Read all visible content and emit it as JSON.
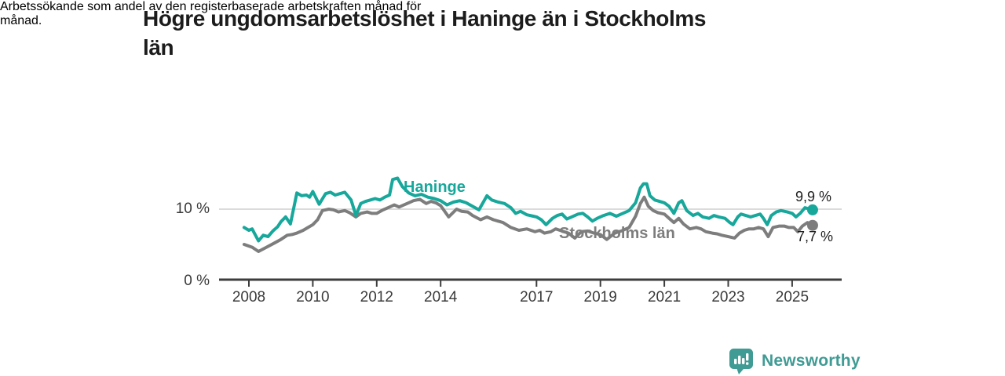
{
  "header": {
    "title_lines": [
      "Högre ungdomsarbetslöshet i Haninge än i Stockholms",
      "län"
    ],
    "subtitle_lines": [
      "Arbetssökande som andel av den registerbaserade arbetskraften månad för",
      "månad."
    ]
  },
  "chart_data": {
    "type": "line",
    "title": "Högre ungdomsarbetslöshet i Haninge än i Stockholms län",
    "subtitle": "Arbetssökande som andel av den registerbaserade arbetskraften månad för månad.",
    "grid": "horizontal line at 10 % only",
    "legend_position": "inline labels on lines",
    "ylim": [
      0,
      15.6
    ],
    "xlim_years": [
      2007.1,
      2026.5
    ],
    "y_axis": {
      "tick_labels": [
        "10 %",
        "0 %"
      ],
      "tick_values": [
        10,
        0
      ],
      "unit": "%"
    },
    "x_axis": {
      "tick_labels": [
        "2008",
        "2010",
        "2012",
        "2014",
        "2017",
        "2019",
        "2021",
        "2023",
        "2025"
      ],
      "tick_years": [
        2008,
        2010,
        2012,
        2014,
        2017,
        2019,
        2021,
        2023,
        2025
      ]
    },
    "gridlines": [
      10
    ],
    "series": [
      {
        "name": "Haninge",
        "color": "#17a79b",
        "end_label": "9,9 %",
        "end_value": 9.9,
        "points": [
          [
            2007.85,
            7.4
          ],
          [
            2008.0,
            7.0
          ],
          [
            2008.1,
            7.2
          ],
          [
            2008.3,
            5.5
          ],
          [
            2008.45,
            6.3
          ],
          [
            2008.6,
            6.1
          ],
          [
            2008.75,
            6.9
          ],
          [
            2008.9,
            7.5
          ],
          [
            2009.0,
            8.2
          ],
          [
            2009.15,
            8.9
          ],
          [
            2009.3,
            7.9
          ],
          [
            2009.5,
            12.3
          ],
          [
            2009.65,
            11.9
          ],
          [
            2009.8,
            12.0
          ],
          [
            2009.9,
            11.7
          ],
          [
            2010.0,
            12.5
          ],
          [
            2010.2,
            10.7
          ],
          [
            2010.4,
            12.2
          ],
          [
            2010.55,
            12.4
          ],
          [
            2010.7,
            12.0
          ],
          [
            2010.85,
            12.2
          ],
          [
            2011.0,
            12.4
          ],
          [
            2011.2,
            11.3
          ],
          [
            2011.35,
            9.1
          ],
          [
            2011.5,
            10.8
          ],
          [
            2011.65,
            11.1
          ],
          [
            2011.8,
            11.3
          ],
          [
            2011.95,
            11.5
          ],
          [
            2012.1,
            11.3
          ],
          [
            2012.25,
            11.7
          ],
          [
            2012.4,
            12.0
          ],
          [
            2012.5,
            14.2
          ],
          [
            2012.65,
            14.4
          ],
          [
            2012.8,
            13.2
          ],
          [
            2013.0,
            12.3
          ],
          [
            2013.2,
            11.9
          ],
          [
            2013.4,
            12.1
          ],
          [
            2013.6,
            11.7
          ],
          [
            2013.8,
            11.5
          ],
          [
            2014.0,
            11.2
          ],
          [
            2014.2,
            10.6
          ],
          [
            2014.4,
            11.0
          ],
          [
            2014.6,
            11.2
          ],
          [
            2014.8,
            10.9
          ],
          [
            2015.0,
            10.4
          ],
          [
            2015.2,
            9.9
          ],
          [
            2015.45,
            11.9
          ],
          [
            2015.6,
            11.3
          ],
          [
            2015.8,
            11.0
          ],
          [
            2016.0,
            10.8
          ],
          [
            2016.2,
            10.2
          ],
          [
            2016.35,
            9.4
          ],
          [
            2016.5,
            9.7
          ],
          [
            2016.7,
            9.2
          ],
          [
            2016.9,
            9.0
          ],
          [
            2017.0,
            8.9
          ],
          [
            2017.15,
            8.5
          ],
          [
            2017.3,
            7.8
          ],
          [
            2017.5,
            8.7
          ],
          [
            2017.65,
            9.1
          ],
          [
            2017.8,
            9.3
          ],
          [
            2017.95,
            8.6
          ],
          [
            2018.1,
            8.9
          ],
          [
            2018.3,
            9.3
          ],
          [
            2018.45,
            9.4
          ],
          [
            2018.6,
            8.9
          ],
          [
            2018.75,
            8.3
          ],
          [
            2018.9,
            8.7
          ],
          [
            2019.1,
            9.1
          ],
          [
            2019.3,
            9.4
          ],
          [
            2019.5,
            9.0
          ],
          [
            2019.7,
            9.4
          ],
          [
            2019.9,
            9.8
          ],
          [
            2020.1,
            10.9
          ],
          [
            2020.25,
            13.0
          ],
          [
            2020.35,
            13.6
          ],
          [
            2020.45,
            13.6
          ],
          [
            2020.55,
            11.9
          ],
          [
            2020.7,
            11.3
          ],
          [
            2020.85,
            11.1
          ],
          [
            2021.0,
            10.9
          ],
          [
            2021.15,
            10.4
          ],
          [
            2021.3,
            9.4
          ],
          [
            2021.45,
            10.9
          ],
          [
            2021.55,
            11.2
          ],
          [
            2021.7,
            9.8
          ],
          [
            2021.9,
            9.1
          ],
          [
            2022.05,
            9.4
          ],
          [
            2022.2,
            8.9
          ],
          [
            2022.4,
            8.7
          ],
          [
            2022.55,
            9.1
          ],
          [
            2022.7,
            8.9
          ],
          [
            2022.9,
            8.7
          ],
          [
            2023.05,
            8.1
          ],
          [
            2023.15,
            7.8
          ],
          [
            2023.3,
            8.9
          ],
          [
            2023.4,
            9.3
          ],
          [
            2023.55,
            9.1
          ],
          [
            2023.7,
            8.9
          ],
          [
            2023.85,
            9.1
          ],
          [
            2024.0,
            9.3
          ],
          [
            2024.1,
            8.7
          ],
          [
            2024.22,
            7.8
          ],
          [
            2024.35,
            9.1
          ],
          [
            2024.5,
            9.6
          ],
          [
            2024.65,
            9.8
          ],
          [
            2024.85,
            9.6
          ],
          [
            2025.0,
            9.4
          ],
          [
            2025.12,
            8.9
          ],
          [
            2025.25,
            9.4
          ],
          [
            2025.4,
            10.2
          ],
          [
            2025.64,
            9.9
          ]
        ]
      },
      {
        "name": "Stockholms län",
        "color": "#7d7d7d",
        "end_label": "7,7 %",
        "end_value": 7.7,
        "points": [
          [
            2007.85,
            5.0
          ],
          [
            2008.1,
            4.6
          ],
          [
            2008.3,
            4.0
          ],
          [
            2008.55,
            4.6
          ],
          [
            2008.8,
            5.2
          ],
          [
            2009.0,
            5.7
          ],
          [
            2009.2,
            6.3
          ],
          [
            2009.35,
            6.4
          ],
          [
            2009.5,
            6.6
          ],
          [
            2009.7,
            7.0
          ],
          [
            2009.85,
            7.4
          ],
          [
            2010.0,
            7.8
          ],
          [
            2010.15,
            8.5
          ],
          [
            2010.3,
            9.8
          ],
          [
            2010.5,
            10.0
          ],
          [
            2010.65,
            9.9
          ],
          [
            2010.8,
            9.6
          ],
          [
            2011.0,
            9.8
          ],
          [
            2011.15,
            9.5
          ],
          [
            2011.35,
            8.9
          ],
          [
            2011.5,
            9.4
          ],
          [
            2011.7,
            9.6
          ],
          [
            2011.85,
            9.4
          ],
          [
            2012.0,
            9.4
          ],
          [
            2012.2,
            9.9
          ],
          [
            2012.4,
            10.3
          ],
          [
            2012.55,
            10.6
          ],
          [
            2012.7,
            10.3
          ],
          [
            2012.85,
            10.6
          ],
          [
            2013.0,
            10.9
          ],
          [
            2013.15,
            11.2
          ],
          [
            2013.35,
            11.4
          ],
          [
            2013.55,
            10.8
          ],
          [
            2013.7,
            11.1
          ],
          [
            2013.85,
            10.9
          ],
          [
            2014.0,
            10.5
          ],
          [
            2014.25,
            8.9
          ],
          [
            2014.5,
            10.0
          ],
          [
            2014.65,
            9.7
          ],
          [
            2014.85,
            9.6
          ],
          [
            2015.0,
            9.1
          ],
          [
            2015.25,
            8.5
          ],
          [
            2015.45,
            8.9
          ],
          [
            2015.65,
            8.5
          ],
          [
            2015.95,
            8.1
          ],
          [
            2016.2,
            7.4
          ],
          [
            2016.45,
            7.0
          ],
          [
            2016.7,
            7.2
          ],
          [
            2016.95,
            6.8
          ],
          [
            2017.1,
            7.0
          ],
          [
            2017.25,
            6.6
          ],
          [
            2017.45,
            6.8
          ],
          [
            2017.6,
            7.2
          ],
          [
            2017.8,
            6.9
          ],
          [
            2018.0,
            6.6
          ],
          [
            2018.2,
            5.9
          ],
          [
            2018.4,
            6.8
          ],
          [
            2018.6,
            6.9
          ],
          [
            2018.8,
            6.6
          ],
          [
            2019.0,
            6.4
          ],
          [
            2019.2,
            5.7
          ],
          [
            2019.45,
            6.6
          ],
          [
            2019.65,
            6.9
          ],
          [
            2019.9,
            7.4
          ],
          [
            2020.1,
            9.0
          ],
          [
            2020.25,
            10.8
          ],
          [
            2020.37,
            11.7
          ],
          [
            2020.5,
            10.4
          ],
          [
            2020.65,
            9.8
          ],
          [
            2020.8,
            9.5
          ],
          [
            2021.0,
            9.3
          ],
          [
            2021.15,
            8.7
          ],
          [
            2021.3,
            8.1
          ],
          [
            2021.45,
            8.7
          ],
          [
            2021.6,
            7.9
          ],
          [
            2021.8,
            7.2
          ],
          [
            2022.0,
            7.4
          ],
          [
            2022.15,
            7.2
          ],
          [
            2022.3,
            6.8
          ],
          [
            2022.5,
            6.6
          ],
          [
            2022.65,
            6.5
          ],
          [
            2022.8,
            6.3
          ],
          [
            2023.0,
            6.1
          ],
          [
            2023.2,
            5.9
          ],
          [
            2023.35,
            6.6
          ],
          [
            2023.5,
            7.0
          ],
          [
            2023.65,
            7.2
          ],
          [
            2023.8,
            7.2
          ],
          [
            2023.95,
            7.4
          ],
          [
            2024.1,
            7.2
          ],
          [
            2024.25,
            6.1
          ],
          [
            2024.4,
            7.4
          ],
          [
            2024.6,
            7.6
          ],
          [
            2024.75,
            7.6
          ],
          [
            2024.9,
            7.4
          ],
          [
            2025.05,
            7.4
          ],
          [
            2025.18,
            6.8
          ],
          [
            2025.32,
            7.6
          ],
          [
            2025.48,
            8.1
          ],
          [
            2025.64,
            7.7
          ]
        ]
      }
    ],
    "colors": {
      "gridline": "#cfcfcf",
      "axis": "#3d3d3d"
    }
  },
  "branding": {
    "name": "Newsworthy",
    "color": "#3f9b94",
    "icon": "newsworthy-bubble-barchart-icon"
  }
}
